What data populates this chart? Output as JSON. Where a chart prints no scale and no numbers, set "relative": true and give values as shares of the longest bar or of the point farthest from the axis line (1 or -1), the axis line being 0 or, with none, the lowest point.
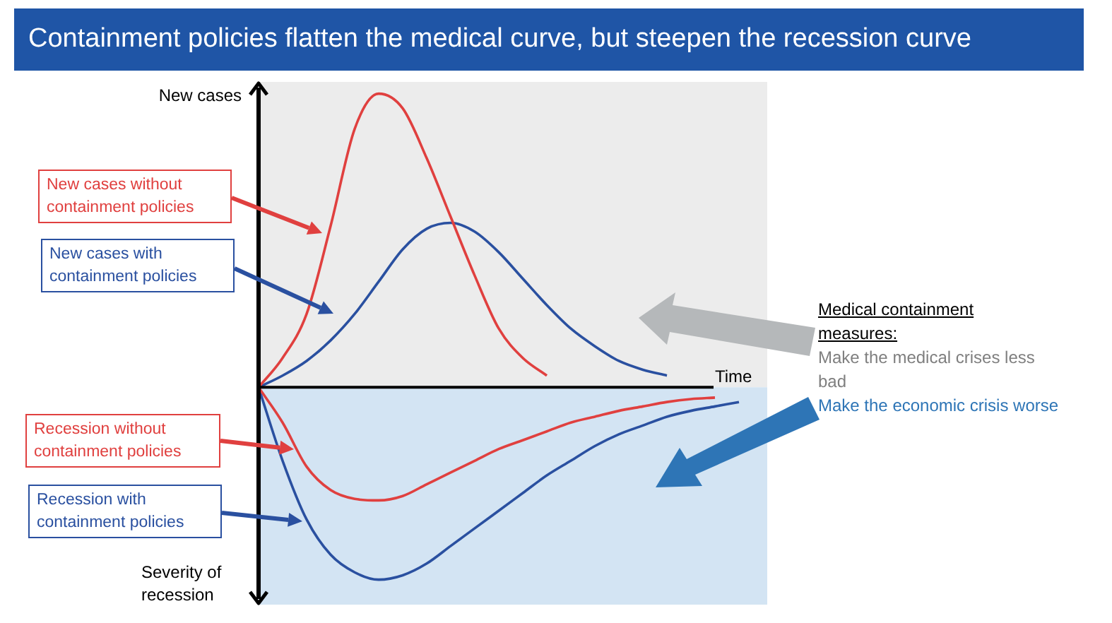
{
  "chart_data": {
    "type": "line",
    "title": "Containment policies flatten the medical curve, but steepen the recession curve",
    "xlabel": "Time",
    "ylabel": "New cases",
    "relative": true,
    "categories": [
      null,
      null,
      null,
      null,
      null,
      null,
      null,
      null,
      null,
      null,
      null,
      null,
      null,
      null,
      null,
      null,
      null,
      null,
      null,
      null,
      null
    ],
    "series": [
      {
        "name": "New cases without containment policies",
        "color": "#e0403f",
        "values": [
          0,
          0.1,
          0.25,
          0.55,
          0.88,
          1.0,
          0.95,
          0.78,
          0.58,
          0.38,
          0.2,
          0.1,
          0.04,
          null,
          null,
          null,
          null,
          null,
          null,
          null,
          null
        ]
      },
      {
        "name": "New cases with containment policies",
        "color": "#2a50a0",
        "values": [
          0,
          0.04,
          0.09,
          0.16,
          0.25,
          0.36,
          0.47,
          0.54,
          0.56,
          0.53,
          0.46,
          0.37,
          0.28,
          0.2,
          0.14,
          0.09,
          0.06,
          0.04,
          null,
          null,
          null
        ]
      },
      {
        "name": "Recession without containment policies",
        "color": "#e0403f",
        "values": [
          0,
          -0.12,
          -0.27,
          -0.35,
          -0.38,
          -0.385,
          -0.37,
          -0.33,
          -0.29,
          -0.25,
          -0.21,
          -0.18,
          -0.15,
          -0.12,
          -0.1,
          -0.08,
          -0.065,
          -0.05,
          -0.04,
          -0.035,
          null
        ]
      },
      {
        "name": "Recession with containment policies",
        "color": "#2a50a0",
        "values": [
          0,
          -0.25,
          -0.45,
          -0.57,
          -0.63,
          -0.655,
          -0.64,
          -0.6,
          -0.54,
          -0.48,
          -0.42,
          -0.36,
          -0.3,
          -0.25,
          -0.2,
          -0.16,
          -0.13,
          -0.1,
          -0.08,
          -0.065,
          -0.05
        ]
      }
    ],
    "bands": [
      {
        "axis": "y",
        "from": 0,
        "to": 1.04,
        "color": "#ececec"
      },
      {
        "axis": "y",
        "from": -0.74,
        "to": 0,
        "color": "#d3e4f3"
      }
    ],
    "annotations": [
      "Severity of recession",
      "Medical containment measures:",
      "Make the medical crises less bad",
      "Make the economic crisis worse"
    ]
  }
}
